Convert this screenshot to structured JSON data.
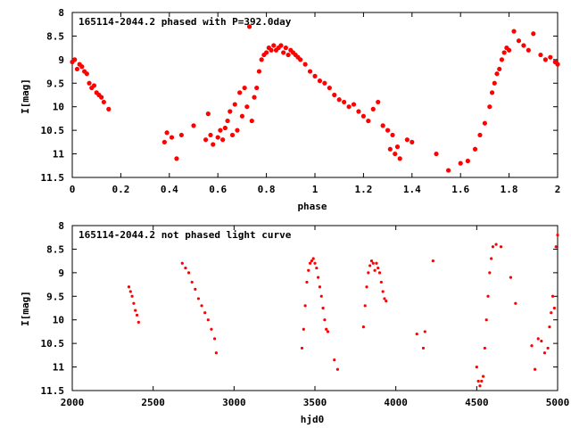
{
  "chart_data": [
    {
      "type": "scatter",
      "title": "165114-2044.2 phased with P=392.0day",
      "xlabel": "phase",
      "ylabel": "I[mag]",
      "xlim": [
        0,
        2
      ],
      "ylim": [
        8,
        11.5
      ],
      "y_inverted": true,
      "x_ticks": [
        0,
        0.2,
        0.4,
        0.6,
        0.8,
        1,
        1.2,
        1.4,
        1.6,
        1.8,
        2
      ],
      "x_tick_labels": [
        "0",
        "0.2",
        "0.4",
        "0.6",
        "0.8",
        "1",
        "1.2",
        "1.4",
        "1.6",
        "1.8",
        "2"
      ],
      "y_ticks": [
        8,
        8.5,
        9,
        9.5,
        10,
        10.5,
        11,
        11.5
      ],
      "y_tick_labels": [
        "8",
        "8.5",
        "9",
        "9.5",
        "10",
        "10.5",
        "11",
        "11.5"
      ],
      "grid": false,
      "marker": "filled-circle",
      "color": "#ff0000",
      "series": [
        {
          "x": [
            0.0,
            0.01,
            0.02,
            0.03,
            0.04,
            0.05,
            0.06,
            0.07,
            0.08,
            0.09,
            0.1,
            0.11,
            0.12,
            0.13,
            0.15,
            0.38,
            0.39,
            0.41,
            0.43,
            0.45,
            0.5,
            0.55,
            0.56,
            0.57,
            0.58,
            0.6,
            0.61,
            0.62,
            0.63,
            0.64,
            0.65,
            0.66,
            0.67,
            0.68,
            0.69,
            0.7,
            0.71,
            0.72,
            0.73,
            0.74,
            0.75,
            0.76,
            0.77,
            0.78,
            0.79,
            0.8,
            0.81,
            0.82,
            0.83,
            0.84,
            0.85,
            0.86,
            0.87,
            0.88,
            0.89,
            0.9,
            0.91,
            0.92,
            0.93,
            0.94,
            0.96,
            0.98,
            1.0,
            1.02,
            1.04,
            1.06,
            1.08,
            1.1,
            1.12,
            1.14,
            1.16,
            1.18,
            1.2,
            1.22,
            1.24,
            1.26,
            1.28,
            1.3,
            1.31,
            1.32,
            1.33,
            1.34,
            1.35,
            1.38,
            1.4,
            1.5,
            1.55,
            1.6,
            1.63,
            1.66,
            1.68,
            1.7,
            1.72,
            1.73,
            1.74,
            1.75,
            1.76,
            1.77,
            1.78,
            1.79,
            1.8,
            1.82,
            1.84,
            1.86,
            1.88,
            1.9,
            1.93,
            1.95,
            1.97,
            1.99,
            2.0
          ],
          "y": [
            9.05,
            9.0,
            9.2,
            9.1,
            9.15,
            9.25,
            9.3,
            9.5,
            9.6,
            9.55,
            9.7,
            9.75,
            9.8,
            9.9,
            10.05,
            10.75,
            10.55,
            10.65,
            11.1,
            10.6,
            10.4,
            10.7,
            10.15,
            10.6,
            10.8,
            10.65,
            10.5,
            10.7,
            10.45,
            10.3,
            10.1,
            10.6,
            9.95,
            10.5,
            9.7,
            10.2,
            9.6,
            10.0,
            8.3,
            10.3,
            9.8,
            9.6,
            9.25,
            9.0,
            8.9,
            8.85,
            8.75,
            8.8,
            8.7,
            8.8,
            8.75,
            8.7,
            8.85,
            8.75,
            8.9,
            8.8,
            8.85,
            8.9,
            8.95,
            9.0,
            9.1,
            9.25,
            9.35,
            9.45,
            9.5,
            9.6,
            9.75,
            9.85,
            9.9,
            10.0,
            9.95,
            10.1,
            10.2,
            10.3,
            10.05,
            9.9,
            10.4,
            10.5,
            10.9,
            10.6,
            11.0,
            10.85,
            11.1,
            10.7,
            10.75,
            11.0,
            11.35,
            11.2,
            11.15,
            10.9,
            10.6,
            10.35,
            10.0,
            9.7,
            9.5,
            9.3,
            9.2,
            9.0,
            8.85,
            8.75,
            8.8,
            8.4,
            8.6,
            8.7,
            8.8,
            8.45,
            8.9,
            9.0,
            8.95,
            9.05,
            9.1
          ]
        }
      ]
    },
    {
      "type": "scatter",
      "title": "165114-2044.2 not phased light curve",
      "xlabel": "hjd0",
      "ylabel": "I[mag]",
      "xlim": [
        2000,
        5000
      ],
      "ylim": [
        8,
        11.5
      ],
      "y_inverted": true,
      "x_ticks": [
        2000,
        2500,
        3000,
        3500,
        4000,
        4500,
        5000
      ],
      "x_tick_labels": [
        "2000",
        "2500",
        "3000",
        "3500",
        "4000",
        "4500",
        "5000"
      ],
      "y_ticks": [
        8,
        8.5,
        9,
        9.5,
        10,
        10.5,
        11,
        11.5
      ],
      "y_tick_labels": [
        "8",
        "8.5",
        "9",
        "9.5",
        "10",
        "10.5",
        "11",
        "11.5"
      ],
      "grid": false,
      "marker": "filled-circle",
      "color": "#ff0000",
      "series": [
        {
          "x": [
            2350,
            2360,
            2370,
            2380,
            2390,
            2400,
            2410,
            2680,
            2700,
            2720,
            2740,
            2760,
            2780,
            2800,
            2820,
            2840,
            2860,
            2880,
            2890,
            3420,
            3430,
            3440,
            3450,
            3460,
            3470,
            3480,
            3490,
            3500,
            3510,
            3520,
            3530,
            3540,
            3550,
            3560,
            3570,
            3580,
            3620,
            3640,
            3800,
            3810,
            3820,
            3830,
            3840,
            3850,
            3860,
            3870,
            3880,
            3890,
            3900,
            3910,
            3920,
            3930,
            3940,
            4130,
            4170,
            4180,
            4230,
            4500,
            4510,
            4520,
            4530,
            4540,
            4550,
            4560,
            4570,
            4580,
            4590,
            4600,
            4620,
            4650,
            4710,
            4740,
            4840,
            4860,
            4880,
            4900,
            4920,
            4940,
            4950,
            4960,
            4970,
            4980,
            4990,
            5000
          ],
          "y": [
            9.3,
            9.4,
            9.5,
            9.65,
            9.8,
            9.9,
            10.05,
            8.8,
            8.9,
            9.0,
            9.2,
            9.35,
            9.55,
            9.7,
            9.85,
            10.0,
            10.2,
            10.4,
            10.7,
            10.6,
            10.2,
            9.7,
            9.2,
            8.95,
            8.8,
            8.75,
            8.7,
            8.8,
            8.9,
            9.1,
            9.3,
            9.5,
            9.75,
            10.0,
            10.2,
            10.25,
            10.85,
            11.05,
            10.15,
            9.7,
            9.3,
            9.0,
            8.85,
            8.75,
            8.8,
            8.95,
            8.8,
            8.9,
            9.0,
            9.2,
            9.4,
            9.55,
            9.6,
            10.3,
            10.6,
            10.25,
            8.75,
            11.0,
            11.3,
            11.4,
            11.3,
            11.2,
            10.6,
            10.0,
            9.5,
            9.0,
            8.7,
            8.45,
            8.4,
            8.45,
            9.1,
            9.65,
            10.55,
            11.05,
            10.4,
            10.45,
            10.7,
            10.6,
            10.15,
            9.85,
            9.5,
            9.75,
            8.45,
            8.2
          ]
        }
      ]
    }
  ]
}
